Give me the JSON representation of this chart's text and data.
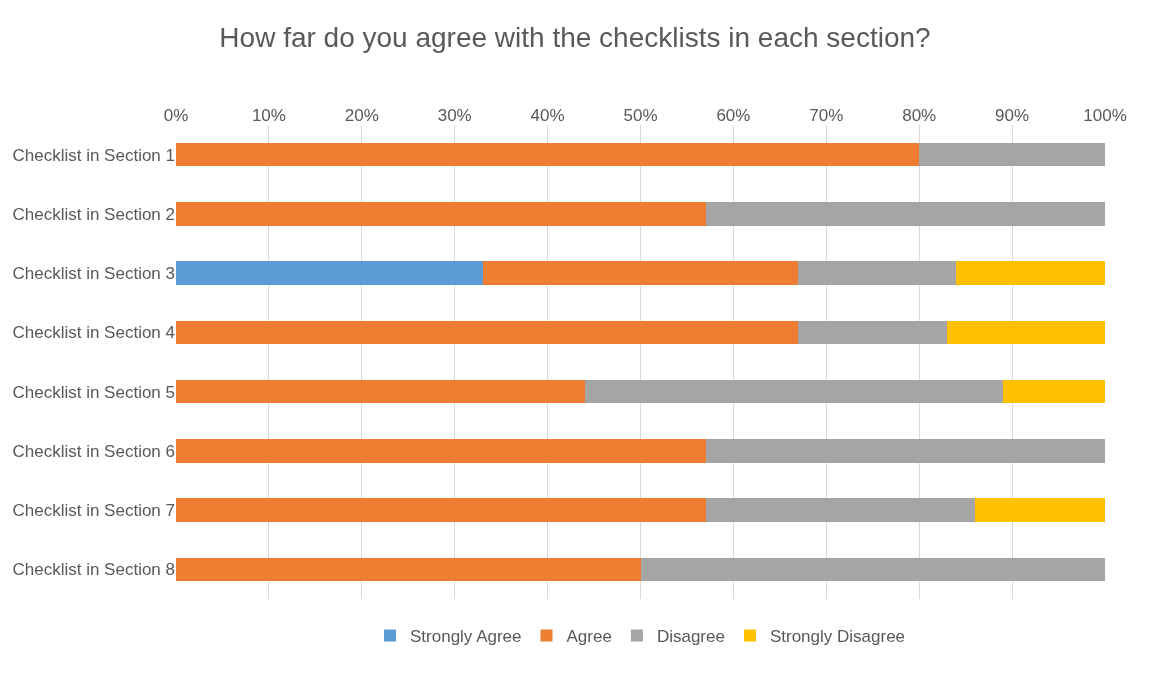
{
  "chart_data": {
    "type": "bar",
    "orientation": "horizontal",
    "stacked": true,
    "title": "How far do you agree with the checklists in each section?",
    "categories": [
      "Checklist in Section 1",
      "Checklist in Section 2",
      "Checklist in Section 3",
      "Checklist in Section 4",
      "Checklist in Section 5",
      "Checklist in Section 6",
      "Checklist in Section 7",
      "Checklist in Section 8"
    ],
    "series": [
      {
        "name": "Strongly Agree",
        "color": "#5b9bd5",
        "values": [
          0,
          0,
          33,
          0,
          0,
          0,
          0,
          0
        ]
      },
      {
        "name": "Agree",
        "color": "#ed7d31",
        "values": [
          80,
          57,
          34,
          67,
          44,
          57,
          57,
          50
        ]
      },
      {
        "name": "Disagree",
        "color": "#a5a5a5",
        "values": [
          20,
          43,
          17,
          16,
          45,
          43,
          29,
          50
        ]
      },
      {
        "name": "Strongly Disagree",
        "color": "#ffc000",
        "values": [
          0,
          0,
          16,
          17,
          11,
          0,
          14,
          0
        ]
      }
    ],
    "xlim": [
      0,
      100
    ],
    "xticks": [
      {
        "value": 0,
        "label": "0%"
      },
      {
        "value": 10,
        "label": "10%"
      },
      {
        "value": 20,
        "label": "20%"
      },
      {
        "value": 30,
        "label": "30%"
      },
      {
        "value": 40,
        "label": "40%"
      },
      {
        "value": 50,
        "label": "50%"
      },
      {
        "value": 60,
        "label": "60%"
      },
      {
        "value": 70,
        "label": "70%"
      },
      {
        "value": 80,
        "label": "80%"
      },
      {
        "value": 90,
        "label": "90%"
      },
      {
        "value": 100,
        "label": "100%"
      }
    ],
    "grid": "x",
    "legend": "bottom"
  }
}
